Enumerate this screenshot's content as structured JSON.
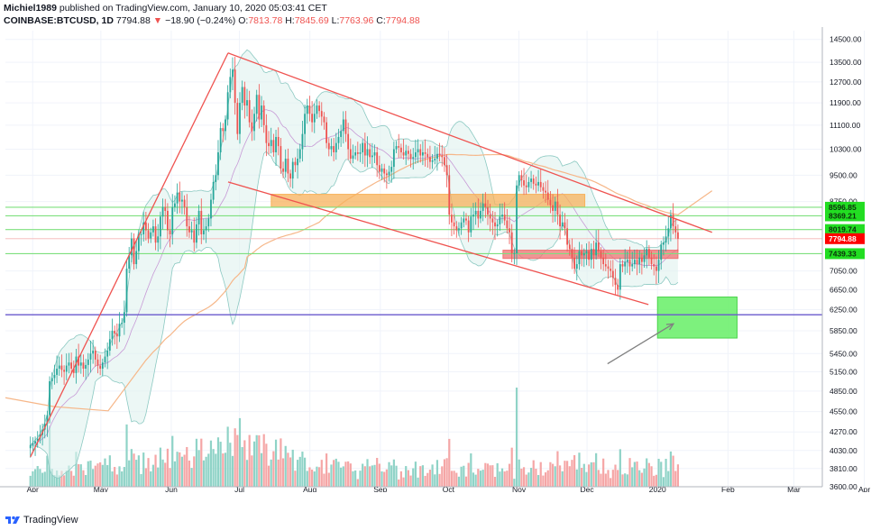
{
  "header": {
    "author": "Michiel1989",
    "published": "published on TradingView.com, January 10, 2020 05:03:41 CET",
    "symbol": "COINBASE:BTCUSD, 1D",
    "last": "7794.88",
    "change_arrow": "▼",
    "change": "−18.90 (−0.24%)",
    "o_label": "O:",
    "o": "7813.78",
    "h_label": "H:",
    "h": "7845.69",
    "l_label": "L:",
    "l": "7763.96",
    "c_label": "C:",
    "c": "7794.88"
  },
  "footer": {
    "brand": "TradingView",
    "logo_icon": "tradingview-logo-icon"
  },
  "colors": {
    "up": "#26a69a",
    "down": "#ef5350",
    "up_vol": "#8fd3c7",
    "down_vol": "#f5a6a6",
    "channel": "#ef5350",
    "support_green": "#7ee07e",
    "target_box": "#66ee66",
    "orange_zone": "#f7b25b",
    "red_zone": "#f07373",
    "blue_line": "#6a5acd",
    "bb_fill": "#dff1ef",
    "ma200": "#f6b789"
  },
  "chart_data": {
    "type": "candlestick",
    "symbol": "COINBASE:BTCUSD",
    "interval": "1D",
    "x_tick_labels": [
      "Apr",
      "May",
      "Jun",
      "Jul",
      "Aug",
      "Sep",
      "Oct",
      "Nov",
      "Dec",
      "2020",
      "Feb",
      "Mar",
      "Apr"
    ],
    "y_tick_labels": [
      "14500.00",
      "13500.00",
      "12700.00",
      "11900.00",
      "11100.00",
      "10300.00",
      "9500.00",
      "8750.00",
      "7050.00",
      "6650.00",
      "6250.00",
      "5850.00",
      "5450.00",
      "5150.00",
      "4850.00",
      "4550.00",
      "4270.00",
      "4030.00",
      "3810.00",
      "3600.00"
    ],
    "ylim": [
      3600,
      14900
    ],
    "scale": "log",
    "price_tags": [
      {
        "value": "8596.85",
        "kind": "level"
      },
      {
        "value": "8369.21",
        "kind": "level"
      },
      {
        "value": "8019.74",
        "kind": "level"
      },
      {
        "value": "7794.88",
        "kind": "last"
      },
      {
        "value": "7439.33",
        "kind": "level"
      }
    ],
    "horizontal_lines": [
      8596.85,
      8369.21,
      8019.74,
      7439.33,
      6150
    ],
    "channel": {
      "upper": [
        [
          "2019-06-26",
          13900
        ],
        [
          "2020-01-25",
          7950
        ]
      ],
      "lower": [
        [
          "2019-06-26",
          9300
        ],
        [
          "2019-12-28",
          6350
        ]
      ],
      "rally_line": [
        [
          "2019-03-31",
          3950
        ],
        [
          "2019-06-26",
          13900
        ]
      ]
    },
    "zones": [
      {
        "name": "orange",
        "from": "2019-07-15",
        "to": "2019-11-30",
        "low": 8600,
        "high": 8950
      },
      {
        "name": "red",
        "from": "2019-10-25",
        "to": "2020-01-10",
        "low": 7330,
        "high": 7520
      }
    ],
    "target_box": {
      "from": "2020-01-01",
      "to": "2020-02-05",
      "low": 5720,
      "high": 6500
    },
    "arrow": {
      "from": [
        "2019-12-10",
        5280
      ],
      "to": [
        "2020-01-08",
        5980
      ]
    },
    "closes": [
      4100,
      4120,
      4150,
      4180,
      4230,
      4300,
      4380,
      4500,
      5000,
      5050,
      5100,
      5200,
      5250,
      5180,
      5150,
      5250,
      5300,
      5200,
      5130,
      5400,
      5250,
      5300,
      5200,
      5260,
      5350,
      5450,
      5500,
      5350,
      5250,
      5200,
      5300,
      5400,
      5500,
      5700,
      5850,
      5800,
      5750,
      5980,
      6000,
      6200,
      7100,
      7400,
      7800,
      7200,
      7500,
      7900,
      7900,
      8200,
      8000,
      7800,
      7950,
      8100,
      7700,
      7850,
      8350,
      8600,
      8500,
      8000,
      7900,
      8600,
      8700,
      9000,
      8750,
      8800,
      8600,
      8100,
      7950,
      8000,
      7700,
      8150,
      8500,
      7900,
      8000,
      8100,
      8300,
      8800,
      9300,
      9500,
      10200,
      11000,
      10900,
      11300,
      12300,
      12900,
      13200,
      11900,
      10800,
      11900,
      12500,
      11800,
      12000,
      11200,
      10900,
      11500,
      12200,
      11300,
      11800,
      11100,
      10500,
      10400,
      10600,
      10200,
      10700,
      10400,
      9700,
      9600,
      10000,
      9550,
      9400,
      9900,
      9800,
      10000,
      10300,
      10800,
      11500,
      11800,
      11500,
      11200,
      11500,
      11800,
      11600,
      11400,
      11200,
      10500,
      10300,
      10400,
      10200,
      10500,
      10700,
      10900,
      11300,
      10800,
      10300,
      10000,
      10100,
      10200,
      10150,
      10200,
      10500,
      10100,
      10300,
      10050,
      10100,
      10200,
      9800,
      9600,
      9700,
      9550,
      9500,
      9600,
      9750,
      10300,
      10400,
      10350,
      10200,
      10100,
      10250,
      10150,
      10000,
      10050,
      10200,
      10300,
      10100,
      10200,
      10150,
      10050,
      9900,
      9950,
      10000,
      10150,
      10100,
      10050,
      9800,
      9500,
      8400,
      8200,
      8100,
      8000,
      8050,
      8200,
      8300,
      8250,
      7950,
      8350,
      8400,
      8500,
      8300,
      8500,
      8700,
      8600,
      8400,
      8300,
      8200,
      8100,
      8150,
      8350,
      8400,
      8250,
      8050,
      7950,
      7450,
      7450,
      9200,
      9500,
      9350,
      9200,
      9150,
      9300,
      9400,
      9250,
      9200,
      9300,
      9150,
      9050,
      9000,
      8800,
      8650,
      8500,
      8750,
      8400,
      8100,
      8200,
      8050,
      7650,
      7550,
      7350,
      7100,
      7200,
      7500,
      7400,
      7450,
      7500,
      7300,
      7550,
      7400,
      7700,
      7500,
      7350,
      7200,
      7150,
      7100,
      7050,
      6900,
      6750,
      6650,
      7200,
      7150,
      7250,
      7300,
      7150,
      7200,
      7300,
      7200,
      7350,
      7250,
      7400,
      7550,
      7350,
      7200,
      7150,
      7050,
      7300,
      7650,
      7700,
      7850,
      8050,
      8400,
      8100,
      7950,
      7794
    ]
  }
}
